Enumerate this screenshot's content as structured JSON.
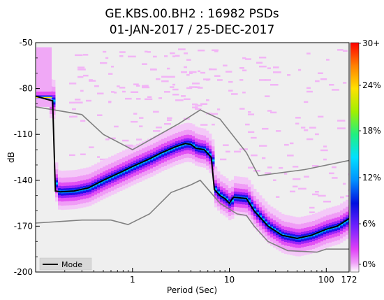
{
  "chart_data": {
    "type": "heatmap",
    "title_line1": "GE.KBS.00.BH2 : 16982 PSDs",
    "title_line2": "01-JAN-2017 / 25-DEC-2017",
    "xlabel": "Period (Sec)",
    "ylabel": "dB",
    "x_scale": "log",
    "xlim": [
      0.1,
      172
    ],
    "ylim": [
      -200,
      -50
    ],
    "x_ticks": [
      {
        "value": 1,
        "label": "1"
      },
      {
        "value": 10,
        "label": "10"
      },
      {
        "value": 100,
        "label": "100"
      },
      {
        "value": 172,
        "label": "172"
      }
    ],
    "y_ticks": [
      {
        "value": -50,
        "label": "-50"
      },
      {
        "value": -80,
        "label": "-80"
      },
      {
        "value": -110,
        "label": "-110"
      },
      {
        "value": -140,
        "label": "-140"
      },
      {
        "value": -170,
        "label": "-170"
      },
      {
        "value": -200,
        "label": "-200"
      }
    ],
    "colorbar": {
      "ticks": [
        "0%",
        "6%",
        "12%",
        "18%",
        "24%",
        "30+"
      ],
      "min": 0,
      "max": 30
    },
    "legend": {
      "placement": "bottom-left",
      "entries": [
        "Mode"
      ]
    },
    "mode_curve": [
      [
        0.1,
        -85
      ],
      [
        0.13,
        -87
      ],
      [
        0.15,
        -88
      ],
      [
        0.16,
        -147
      ],
      [
        0.18,
        -147.5
      ],
      [
        0.25,
        -147
      ],
      [
        0.35,
        -145
      ],
      [
        0.5,
        -140
      ],
      [
        0.8,
        -134
      ],
      [
        1.0,
        -131
      ],
      [
        1.5,
        -126
      ],
      [
        2.0,
        -122
      ],
      [
        2.8,
        -118
      ],
      [
        3.5,
        -116
      ],
      [
        4.0,
        -116.5
      ],
      [
        4.5,
        -119
      ],
      [
        5.5,
        -120
      ],
      [
        6.5,
        -125
      ],
      [
        7.0,
        -146
      ],
      [
        8.0,
        -150
      ],
      [
        9.0,
        -152
      ],
      [
        10,
        -155
      ],
      [
        11,
        -151
      ],
      [
        15,
        -152
      ],
      [
        18,
        -160
      ],
      [
        25,
        -170
      ],
      [
        35,
        -176
      ],
      [
        50,
        -178
      ],
      [
        70,
        -176
      ],
      [
        100,
        -172
      ],
      [
        130,
        -170
      ],
      [
        172,
        -165
      ]
    ],
    "nhnm": [
      [
        0.1,
        -92
      ],
      [
        0.3,
        -97
      ],
      [
        0.5,
        -110
      ],
      [
        1.0,
        -120
      ],
      [
        3.0,
        -103
      ],
      [
        5.0,
        -94
      ],
      [
        8.0,
        -100
      ],
      [
        15.0,
        -122
      ],
      [
        20.0,
        -137
      ],
      [
        60.0,
        -133
      ],
      [
        172.0,
        -127
      ]
    ],
    "nlnm": [
      [
        0.1,
        -168
      ],
      [
        0.3,
        -166
      ],
      [
        0.6,
        -166
      ],
      [
        0.9,
        -169
      ],
      [
        1.5,
        -162
      ],
      [
        2.5,
        -148
      ],
      [
        4.0,
        -143
      ],
      [
        5.0,
        -140
      ],
      [
        8.0,
        -155
      ],
      [
        12.0,
        -162
      ],
      [
        15.0,
        -163
      ],
      [
        18.0,
        -170
      ],
      [
        25.0,
        -180
      ],
      [
        40.0,
        -186
      ],
      [
        80.0,
        -187
      ],
      [
        100.0,
        -185
      ],
      [
        172.0,
        -185
      ]
    ]
  }
}
